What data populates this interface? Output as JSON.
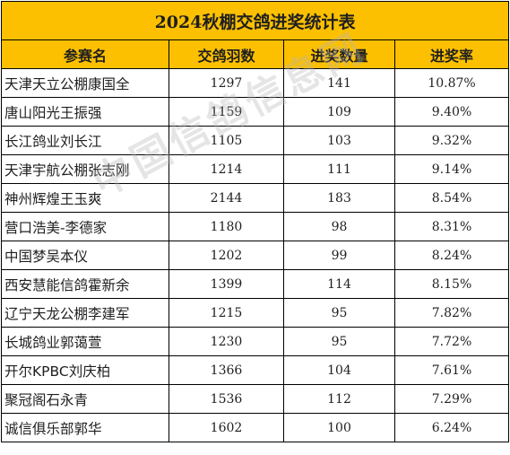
{
  "title": "2024秋棚交鸽进奖统计表",
  "headers": [
    "参赛名",
    "交鸽羽数",
    "进奖数量",
    "进奖率"
  ],
  "rows": [
    {
      "name": "天津天立公棚康国全",
      "pigeons": "1297",
      "prizes": "141",
      "rate": "10.87%"
    },
    {
      "name": "唐山阳光王振强",
      "pigeons": "1159",
      "prizes": "109",
      "rate": "9.40%"
    },
    {
      "name": "长江鸽业刘长江",
      "pigeons": "1105",
      "prizes": "103",
      "rate": "9.32%"
    },
    {
      "name": "天津宇航公棚张志刚",
      "pigeons": "1214",
      "prizes": "111",
      "rate": "9.14%"
    },
    {
      "name": "神州辉煌王玉爽",
      "pigeons": "2144",
      "prizes": "183",
      "rate": "8.54%"
    },
    {
      "name": "营口浩美-李德家",
      "pigeons": "1180",
      "prizes": "98",
      "rate": "8.31%"
    },
    {
      "name": "中国梦吴本仪",
      "pigeons": "1202",
      "prizes": "99",
      "rate": "8.24%"
    },
    {
      "name": "西安慧能信鸽霍新余",
      "pigeons": "1399",
      "prizes": "114",
      "rate": "8.15%"
    },
    {
      "name": "辽宁天龙公棚李建军",
      "pigeons": "1215",
      "prizes": "95",
      "rate": "7.82%"
    },
    {
      "name": "长城鸽业郭蔼萱",
      "pigeons": "1230",
      "prizes": "95",
      "rate": "7.72%"
    },
    {
      "name": "开尔KPBC刘庆柏",
      "pigeons": "1366",
      "prizes": "104",
      "rate": "7.61%"
    },
    {
      "name": "聚冠阁石永青",
      "pigeons": "1536",
      "prizes": "112",
      "rate": "7.29%"
    },
    {
      "name": "诚信俱乐部郭华",
      "pigeons": "1602",
      "prizes": "100",
      "rate": "6.24%"
    }
  ],
  "watermark": "中国信鸽信息网",
  "colors": {
    "header_bg": "#fcc000",
    "border": "#000000",
    "text": "#1f1f1f"
  }
}
